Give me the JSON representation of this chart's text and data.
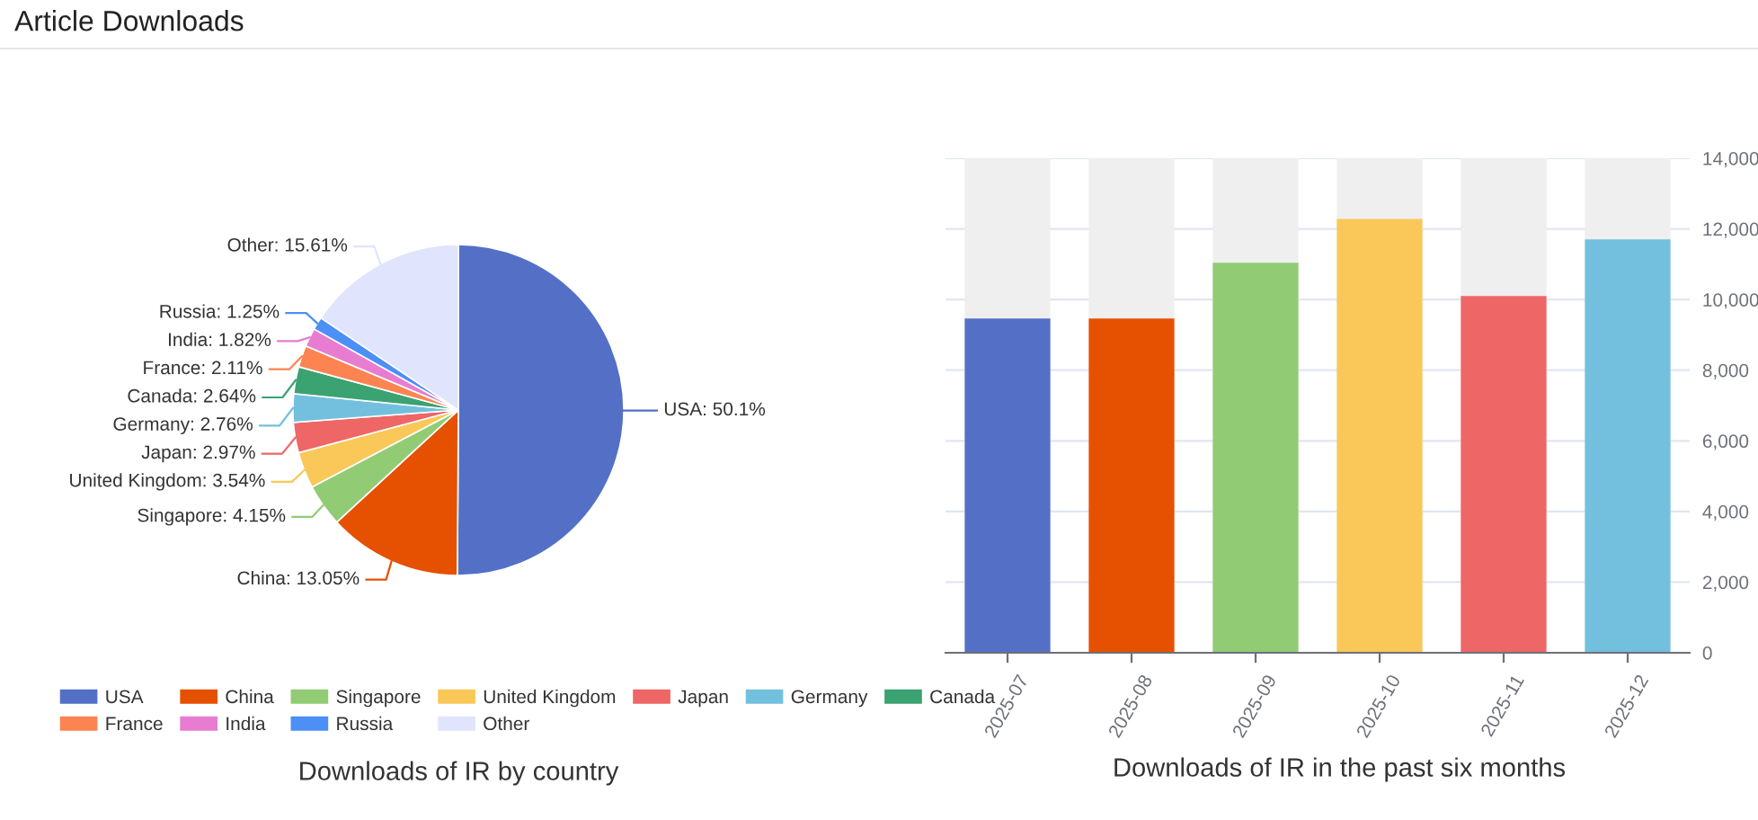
{
  "chart_data": [
    {
      "type": "pie",
      "title": "Downloads of IR by country",
      "annotations": [
        "Article Downloads"
      ],
      "categories": [
        "USA",
        "China",
        "Singapore",
        "United Kingdom",
        "Japan",
        "Germany",
        "Canada",
        "France",
        "India",
        "Russia",
        "Other"
      ],
      "values": [
        50.1,
        13.05,
        4.15,
        3.54,
        2.97,
        2.76,
        2.64,
        2.11,
        1.82,
        1.25,
        15.61
      ],
      "value_labels": [
        "USA: 50.1%",
        "China: 13.05%",
        "Singapore: 4.15%",
        "United Kingdom: 3.54%",
        "Japan: 2.97%",
        "Germany: 2.76%",
        "Canada: 2.64%",
        "France: 2.11%",
        "India: 1.82%",
        "Russia: 1.25%",
        "Other: 15.61%"
      ],
      "colors": [
        "#5470c6",
        "#e55100",
        "#91cc75",
        "#fac858",
        "#ee6666",
        "#73c0de",
        "#3ba272",
        "#fc8452",
        "#e87cd0",
        "#4b8ff7",
        "#e0e4fc"
      ],
      "legend": "bottom"
    },
    {
      "type": "bar",
      "title": "Downloads of IR in the past six months",
      "categories": [
        "2025-07",
        "2025-08",
        "2025-09",
        "2025-10",
        "2025-11",
        "2025-12"
      ],
      "values": [
        9460,
        9460,
        11040,
        12280,
        10100,
        11700
      ],
      "colors": [
        "#5470c6",
        "#e55100",
        "#91cc75",
        "#fac858",
        "#ee6666",
        "#73c0de"
      ],
      "ylim": [
        0,
        14000
      ],
      "yticks": [
        0,
        {
          "value": 2000,
          "label": "2,000"
        },
        {
          "value": 4000,
          "label": "4,000"
        },
        {
          "value": 6000,
          "label": "6,000"
        },
        {
          "value": 8000,
          "label": "8,000"
        },
        {
          "value": 10000,
          "label": "10,000"
        },
        {
          "value": 12000,
          "label": "12,000"
        },
        {
          "value": 14000,
          "label": "14,000"
        }
      ],
      "grid": "y"
    }
  ]
}
